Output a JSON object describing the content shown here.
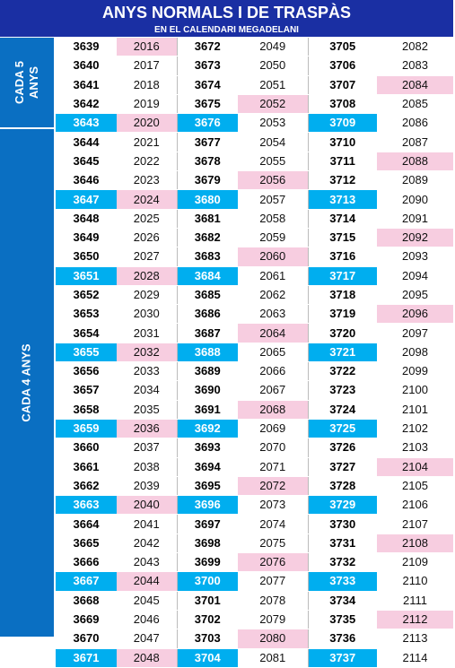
{
  "header": {
    "title": "ANYS NORMALS I DE TRASPÀS",
    "subtitle": "EN EL CALENDARI MEGADELANI"
  },
  "side_labels": [
    "CADA 5 ANYS",
    "CADA 4 ANYS"
  ],
  "table": {
    "rows": [
      [
        3639,
        2016,
        3672,
        2049,
        3705,
        2082
      ],
      [
        3640,
        2017,
        3673,
        2050,
        3706,
        2083
      ],
      [
        3641,
        2018,
        3674,
        2051,
        3707,
        2084
      ],
      [
        3642,
        2019,
        3675,
        2052,
        3708,
        2085
      ],
      [
        3643,
        2020,
        3676,
        2053,
        3709,
        2086
      ],
      [
        3644,
        2021,
        3677,
        2054,
        3710,
        2087
      ],
      [
        3645,
        2022,
        3678,
        2055,
        3711,
        2088
      ],
      [
        3646,
        2023,
        3679,
        2056,
        3712,
        2089
      ],
      [
        3647,
        2024,
        3680,
        2057,
        3713,
        2090
      ],
      [
        3648,
        2025,
        3681,
        2058,
        3714,
        2091
      ],
      [
        3649,
        2026,
        3682,
        2059,
        3715,
        2092
      ],
      [
        3650,
        2027,
        3683,
        2060,
        3716,
        2093
      ],
      [
        3651,
        2028,
        3684,
        2061,
        3717,
        2094
      ],
      [
        3652,
        2029,
        3685,
        2062,
        3718,
        2095
      ],
      [
        3653,
        2030,
        3686,
        2063,
        3719,
        2096
      ],
      [
        3654,
        2031,
        3687,
        2064,
        3720,
        2097
      ],
      [
        3655,
        2032,
        3688,
        2065,
        3721,
        2098
      ],
      [
        3656,
        2033,
        3689,
        2066,
        3722,
        2099
      ],
      [
        3657,
        2034,
        3690,
        2067,
        3723,
        2100
      ],
      [
        3658,
        2035,
        3691,
        2068,
        3724,
        2101
      ],
      [
        3659,
        2036,
        3692,
        2069,
        3725,
        2102
      ],
      [
        3660,
        2037,
        3693,
        2070,
        3726,
        2103
      ],
      [
        3661,
        2038,
        3694,
        2071,
        3727,
        2104
      ],
      [
        3662,
        2039,
        3695,
        2072,
        3728,
        2105
      ],
      [
        3663,
        2040,
        3696,
        2073,
        3729,
        2106
      ],
      [
        3664,
        2041,
        3697,
        2074,
        3730,
        2107
      ],
      [
        3665,
        2042,
        3698,
        2075,
        3731,
        2108
      ],
      [
        3666,
        2043,
        3699,
        2076,
        3732,
        2109
      ],
      [
        3667,
        2044,
        3700,
        2077,
        3733,
        2110
      ],
      [
        3668,
        2045,
        3701,
        2078,
        3734,
        2111
      ],
      [
        3669,
        2046,
        3702,
        2079,
        3735,
        2112
      ],
      [
        3670,
        2047,
        3703,
        2080,
        3736,
        2113
      ],
      [
        3671,
        2048,
        3704,
        2081,
        3737,
        2114
      ]
    ]
  }
}
